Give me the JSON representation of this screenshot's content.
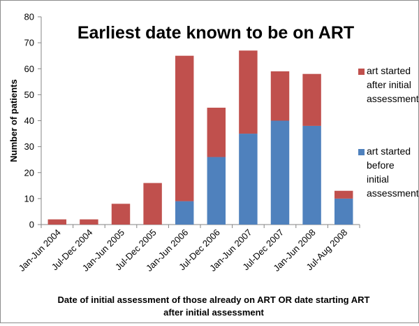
{
  "chart_data": {
    "type": "bar",
    "stacked": true,
    "title": "Earliest date known to be on ART",
    "xlabel": [
      "Date of initial assessment of those already on ART OR date starting ART",
      "after initial assessment"
    ],
    "ylabel": "Number of patients",
    "ylim": [
      0,
      80
    ],
    "yticks": [
      0,
      10,
      20,
      30,
      40,
      50,
      60,
      70,
      80
    ],
    "grid": false,
    "legend_position": "right",
    "categories": [
      "Jan-Jun 2004",
      "Jul-Dec 2004",
      "Jan-Jun 2005",
      "Jul-Dec 2005",
      "Jan-Jun 2006",
      "Jul-Dec 2006",
      "Jan-Jun 2007",
      "Jul-Dec 2007",
      "Jan-Jun 2008",
      "Jul-Aug 2008"
    ],
    "series": [
      {
        "name": [
          "art started",
          "before",
          "initial",
          "assessment"
        ],
        "color": "#4f81bd",
        "values": [
          0,
          0,
          0,
          0,
          9,
          26,
          35,
          40,
          38,
          10
        ]
      },
      {
        "name": [
          "art started",
          "after initial",
          "assessment"
        ],
        "color": "#c0504d",
        "values": [
          2,
          2,
          8,
          16,
          56,
          19,
          32,
          19,
          20,
          3
        ]
      }
    ]
  }
}
